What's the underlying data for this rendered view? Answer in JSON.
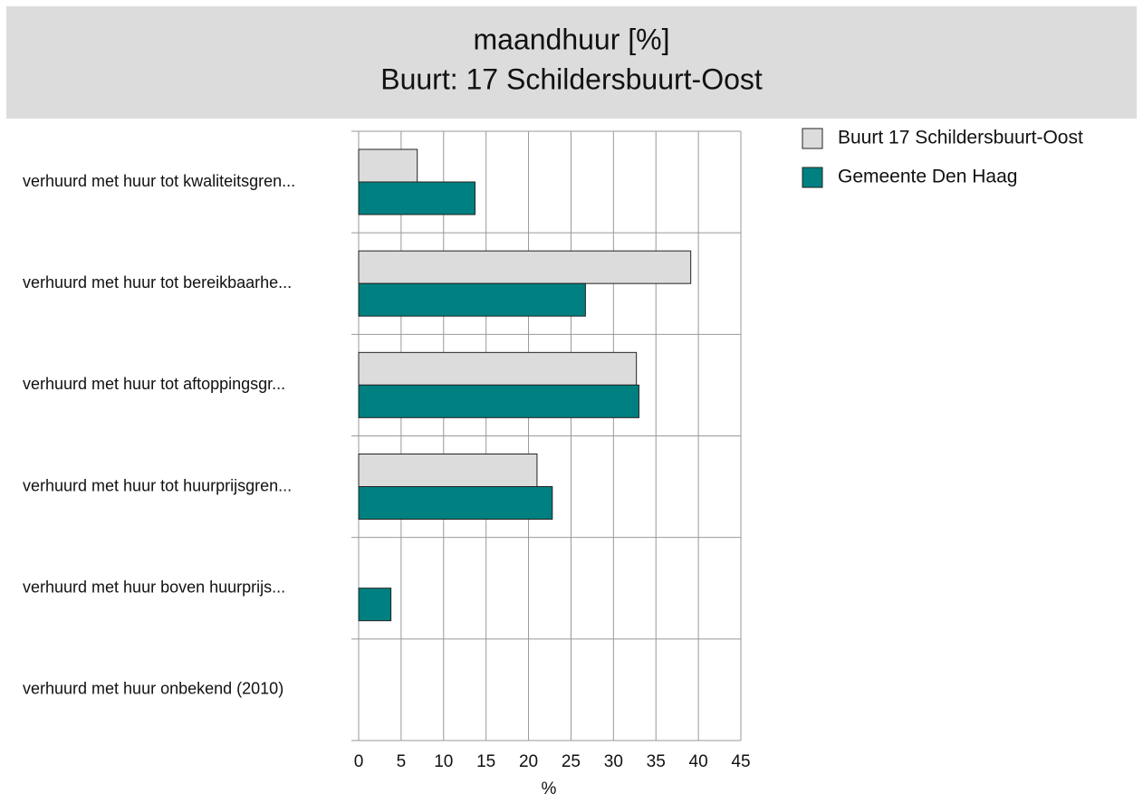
{
  "chart_data": {
    "type": "barh",
    "title": "maandhuur [%]",
    "subtitle": "Buurt: 17 Schildersbuurt-Oost",
    "categories": [
      "verhuurd met huur tot kwaliteitsgren...",
      "verhuurd met huur tot bereikbaarhe...",
      "verhuurd met huur tot aftoppingsgr...",
      "verhuurd met huur tot huurprijsgren...",
      "verhuurd met huur boven huurprijs...",
      "verhuurd met huur onbekend (2010)"
    ],
    "series": [
      {
        "name": "Buurt 17 Schildersbuurt-Oost",
        "color": "#dcdcdc",
        "values": [
          6.9,
          39.1,
          32.7,
          21.0,
          null,
          null
        ]
      },
      {
        "name": "Gemeente Den Haag",
        "color": "#008080",
        "values": [
          13.7,
          26.7,
          33.0,
          22.8,
          3.8,
          null
        ]
      }
    ],
    "xlabel": "%",
    "xlim": [
      0,
      45
    ],
    "xticks": [
      0,
      5,
      10,
      15,
      20,
      25,
      30,
      35,
      40,
      45
    ],
    "grid": true,
    "legend": "right"
  }
}
